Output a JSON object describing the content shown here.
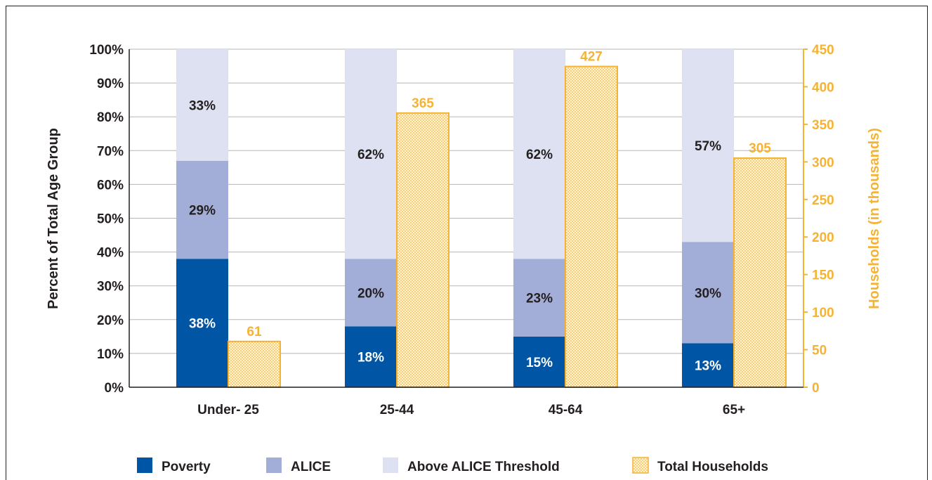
{
  "chart_data": {
    "type": "bar",
    "categories": [
      "Under- 25",
      "25-44",
      "45-64",
      "65+"
    ],
    "series": [
      {
        "name": "Poverty",
        "axis": "left",
        "stack": "percent",
        "values": [
          38,
          18,
          15,
          13
        ],
        "labels": [
          "38%",
          "18%",
          "15%",
          "13%"
        ],
        "color": "#0055a4"
      },
      {
        "name": "ALICE",
        "axis": "left",
        "stack": "percent",
        "values": [
          29,
          20,
          23,
          30
        ],
        "labels": [
          "29%",
          "20%",
          "23%",
          "30%"
        ],
        "color": "#a3aed8"
      },
      {
        "name": "Above ALICE Threshold",
        "axis": "left",
        "stack": "percent",
        "values": [
          33,
          62,
          62,
          57
        ],
        "labels": [
          "33%",
          "62%",
          "62%",
          "57%"
        ],
        "color": "#dde1f1"
      },
      {
        "name": "Total Households",
        "axis": "right",
        "values": [
          61,
          365,
          427,
          305
        ],
        "labels": [
          "61",
          "365",
          "427",
          "305"
        ],
        "color": "#f5b335"
      }
    ],
    "ylabel": "Percent of Total Age Group",
    "ylabel_right": "Households (in thousands)",
    "ylim": [
      0,
      100
    ],
    "ylim_right": [
      0,
      450
    ],
    "yticks": [
      "0%",
      "10%",
      "20%",
      "30%",
      "40%",
      "50%",
      "60%",
      "70%",
      "80%",
      "90%",
      "100%"
    ],
    "yticks_right": [
      "0",
      "50",
      "100",
      "150",
      "200",
      "250",
      "300",
      "350",
      "400",
      "450"
    ],
    "grid": true,
    "legend_position": "bottom"
  }
}
